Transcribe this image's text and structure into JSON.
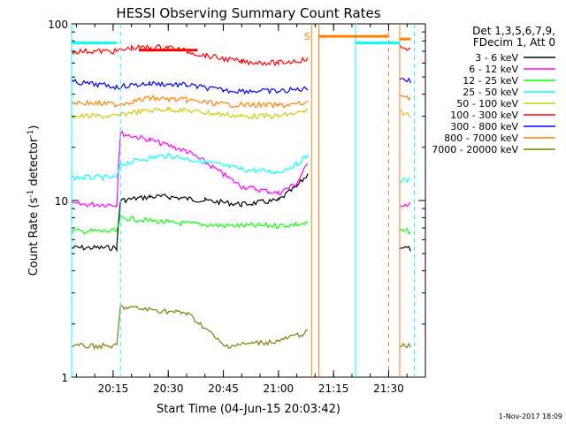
{
  "chart_data": {
    "type": "line",
    "title": "HESSI Observing Summary Count Rates",
    "xlabel": "Start Time (04-Jun-15 20:03:42)",
    "ylabel": "Count Rate (s",
    "ylabel_sup": "-1",
    "ylabel_end": " detector",
    "ylabel_end_sup": "-1",
    "ylabel_close": ")",
    "y_scale": "log",
    "ylim": [
      1,
      100
    ],
    "xlim": [
      "20:03:42",
      "21:40:00"
    ],
    "x_ticks": [
      "20:15",
      "20:30",
      "20:45",
      "21:00",
      "21:15",
      "21:30"
    ],
    "y_ticks": [
      "1",
      "10",
      "100"
    ],
    "legend_header": [
      "Det 1,3,5,6,7,9,",
      "FDecim 1, Att 0"
    ],
    "legend_position": "right",
    "timestamp": "1-Nov-2017 18:09",
    "flag_label": "S",
    "series": [
      {
        "name": "3 - 6 keV",
        "color": "#000000",
        "points": [
          [
            "20:03:42",
            5.4
          ],
          [
            "20:16",
            5.4
          ],
          [
            "20:17",
            10
          ],
          [
            "20:25",
            10.5
          ],
          [
            "20:30",
            10.5
          ],
          [
            "20:40",
            10
          ],
          [
            "20:50",
            9.5
          ],
          [
            "21:00",
            10
          ],
          [
            "21:05",
            12
          ],
          [
            "21:08",
            14
          ]
        ],
        "tail": [
          [
            "21:33",
            5.5
          ],
          [
            "21:36",
            5.3
          ]
        ]
      },
      {
        "name": "6 - 12 keV",
        "color": "#ff00ff",
        "points": [
          [
            "20:03:42",
            9.5
          ],
          [
            "20:16",
            9.5
          ],
          [
            "20:17",
            24
          ],
          [
            "20:25",
            22
          ],
          [
            "20:35",
            19
          ],
          [
            "20:45",
            14
          ],
          [
            "20:50",
            12
          ],
          [
            "21:00",
            11
          ],
          [
            "21:05",
            12.5
          ],
          [
            "21:08",
            16
          ]
        ],
        "tail": [
          [
            "21:33",
            9.5
          ],
          [
            "21:36",
            9.5
          ]
        ]
      },
      {
        "name": "12 - 25 keV",
        "color": "#00ff00",
        "points": [
          [
            "20:03:42",
            6.7
          ],
          [
            "20:16",
            6.7
          ],
          [
            "20:17",
            8
          ],
          [
            "20:30",
            7.5
          ],
          [
            "20:45",
            7.2
          ],
          [
            "21:00",
            7.2
          ],
          [
            "21:08",
            7.4
          ]
        ],
        "tail": [
          [
            "21:33",
            6.7
          ],
          [
            "21:36",
            6.7
          ]
        ]
      },
      {
        "name": "25 - 50 keV",
        "color": "#00ffff",
        "points": [
          [
            "20:03:42",
            13.5
          ],
          [
            "20:16",
            13.5
          ],
          [
            "20:17",
            16
          ],
          [
            "20:25",
            17.5
          ],
          [
            "20:30",
            18
          ],
          [
            "20:40",
            16.5
          ],
          [
            "20:50",
            15
          ],
          [
            "21:00",
            14.5
          ],
          [
            "21:05",
            16
          ],
          [
            "21:08",
            18
          ]
        ],
        "tail": [
          [
            "21:33",
            13
          ],
          [
            "21:36",
            13
          ]
        ]
      },
      {
        "name": "50 - 100 keV",
        "color": "#cccc00",
        "points": [
          [
            "20:03:42",
            30
          ],
          [
            "20:16",
            30
          ],
          [
            "20:20",
            31.5
          ],
          [
            "20:30",
            33
          ],
          [
            "20:40",
            31.5
          ],
          [
            "20:50",
            30
          ],
          [
            "21:00",
            30
          ],
          [
            "21:08",
            32
          ]
        ],
        "tail": [
          [
            "21:33",
            32
          ],
          [
            "21:36",
            30
          ]
        ]
      },
      {
        "name": "100 - 300 keV",
        "color": "#ff0000",
        "points": [
          [
            "20:03:42",
            70
          ],
          [
            "20:16",
            70
          ],
          [
            "20:20",
            73
          ],
          [
            "20:30",
            74
          ],
          [
            "20:40",
            66
          ],
          [
            "20:50",
            61
          ],
          [
            "21:00",
            60
          ],
          [
            "21:08",
            63
          ]
        ],
        "tail": [
          [
            "21:33",
            74
          ],
          [
            "21:36",
            72
          ]
        ]
      },
      {
        "name": "300 - 800 keV",
        "color": "#0000ff",
        "points": [
          [
            "20:03:42",
            47
          ],
          [
            "20:16",
            44
          ],
          [
            "20:25",
            46
          ],
          [
            "20:35",
            45
          ],
          [
            "20:45",
            42
          ],
          [
            "21:00",
            41.5
          ],
          [
            "21:08",
            43
          ]
        ],
        "tail": [
          [
            "21:33",
            50
          ],
          [
            "21:36",
            47
          ]
        ]
      },
      {
        "name": "800 - 7000 keV",
        "color": "#ff8000",
        "points": [
          [
            "20:03:42",
            36
          ],
          [
            "20:16",
            35
          ],
          [
            "20:25",
            38
          ],
          [
            "20:35",
            37
          ],
          [
            "20:45",
            35
          ],
          [
            "21:00",
            34.5
          ],
          [
            "21:08",
            35.5
          ]
        ],
        "tail": [
          [
            "21:33",
            40
          ],
          [
            "21:36",
            38
          ]
        ]
      },
      {
        "name": "7000 - 20000 keV",
        "color": "#808000",
        "points": [
          [
            "20:03:42",
            1.5
          ],
          [
            "20:16",
            1.5
          ],
          [
            "20:17",
            2.5
          ],
          [
            "20:35",
            2.3
          ],
          [
            "20:45",
            1.5
          ],
          [
            "21:00",
            1.6
          ],
          [
            "21:08",
            1.8
          ]
        ],
        "tail": [
          [
            "21:33",
            1.5
          ],
          [
            "21:36",
            1.5
          ]
        ]
      }
    ],
    "vertical_markers": [
      {
        "time": "20:03:42",
        "color": "#00ffff",
        "style": "solid"
      },
      {
        "time": "20:17",
        "color": "#00ffff",
        "style": "dashed"
      },
      {
        "time": "21:09",
        "color": "#ff8000",
        "style": "solid"
      },
      {
        "time": "21:11",
        "color": "#ff8000",
        "style": "solid"
      },
      {
        "time": "21:21",
        "color": "#00ffff",
        "style": "solid"
      },
      {
        "time": "21:30",
        "color": "#ff8000",
        "style": "dashed"
      },
      {
        "time": "21:33",
        "color": "#ff8000",
        "style": "solid"
      },
      {
        "time": "21:37",
        "color": "#00ffff",
        "style": "dashed"
      }
    ],
    "horizontal_bars": [
      {
        "start": "20:03:42",
        "end": "20:16",
        "level": 78,
        "color": "#00ffff"
      },
      {
        "start": "20:22",
        "end": "20:38",
        "level": 71,
        "color": "#ff0000"
      },
      {
        "start": "21:11",
        "end": "21:30",
        "level": 85,
        "color": "#ff8000"
      },
      {
        "start": "21:21",
        "end": "21:33",
        "level": 78,
        "color": "#00ffff"
      },
      {
        "start": "21:33",
        "end": "21:36",
        "level": 82,
        "color": "#ff8000"
      }
    ]
  }
}
